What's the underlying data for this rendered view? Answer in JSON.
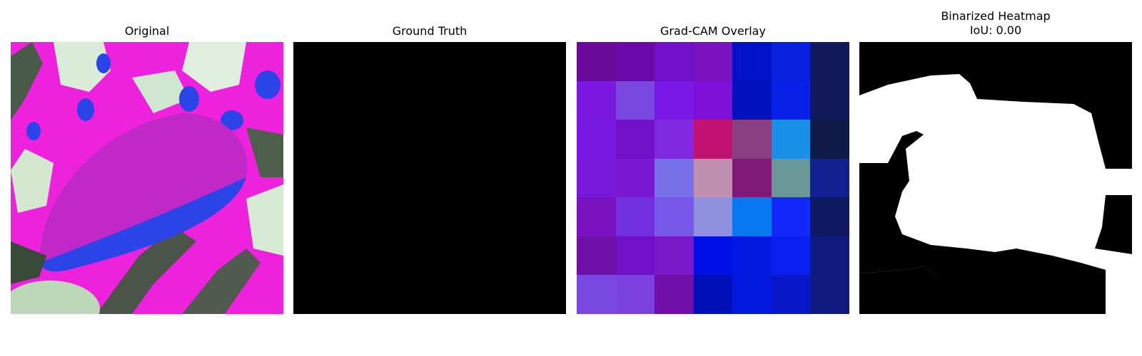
{
  "panels": {
    "original": {
      "title": "Original"
    },
    "ground_truth": {
      "title": "Ground Truth",
      "fill": "#000000"
    },
    "gradcam": {
      "title": "Grad-CAM Overlay",
      "grid": [
        [
          "#6a0a9a",
          "#6a08a8",
          "#7010c8",
          "#7a12c0",
          "#0012c8",
          "#0820e0",
          "#101a5a"
        ],
        [
          "#7a18e0",
          "#7848e0",
          "#7a18e8",
          "#8010d8",
          "#0012c0",
          "#0820e8",
          "#101a58"
        ],
        [
          "#7818e0",
          "#7210c8",
          "#8028e0",
          "#c01070",
          "#884080",
          "#1890e8",
          "#101a48"
        ],
        [
          "#7818d8",
          "#7818d0",
          "#7870e8",
          "#c090b0",
          "#801878",
          "#6a9898",
          "#102090"
        ],
        [
          "#7a12c0",
          "#7030e0",
          "#7858e8",
          "#9090e0",
          "#0878f0",
          "#1028f8",
          "#101a60"
        ],
        [
          "#7010a8",
          "#7010c8",
          "#7818c8",
          "#0010e8",
          "#0018e0",
          "#0820f0",
          "#101a80"
        ],
        [
          "#7848e0",
          "#7a40e0",
          "#7010a8",
          "#0010b8",
          "#0018e0",
          "#0818c8",
          "#101a80"
        ]
      ]
    },
    "binarized": {
      "title": "Binarized Heatmap\nIoU: 0.00",
      "background": "#000000",
      "foreground": "#ffffff"
    }
  }
}
